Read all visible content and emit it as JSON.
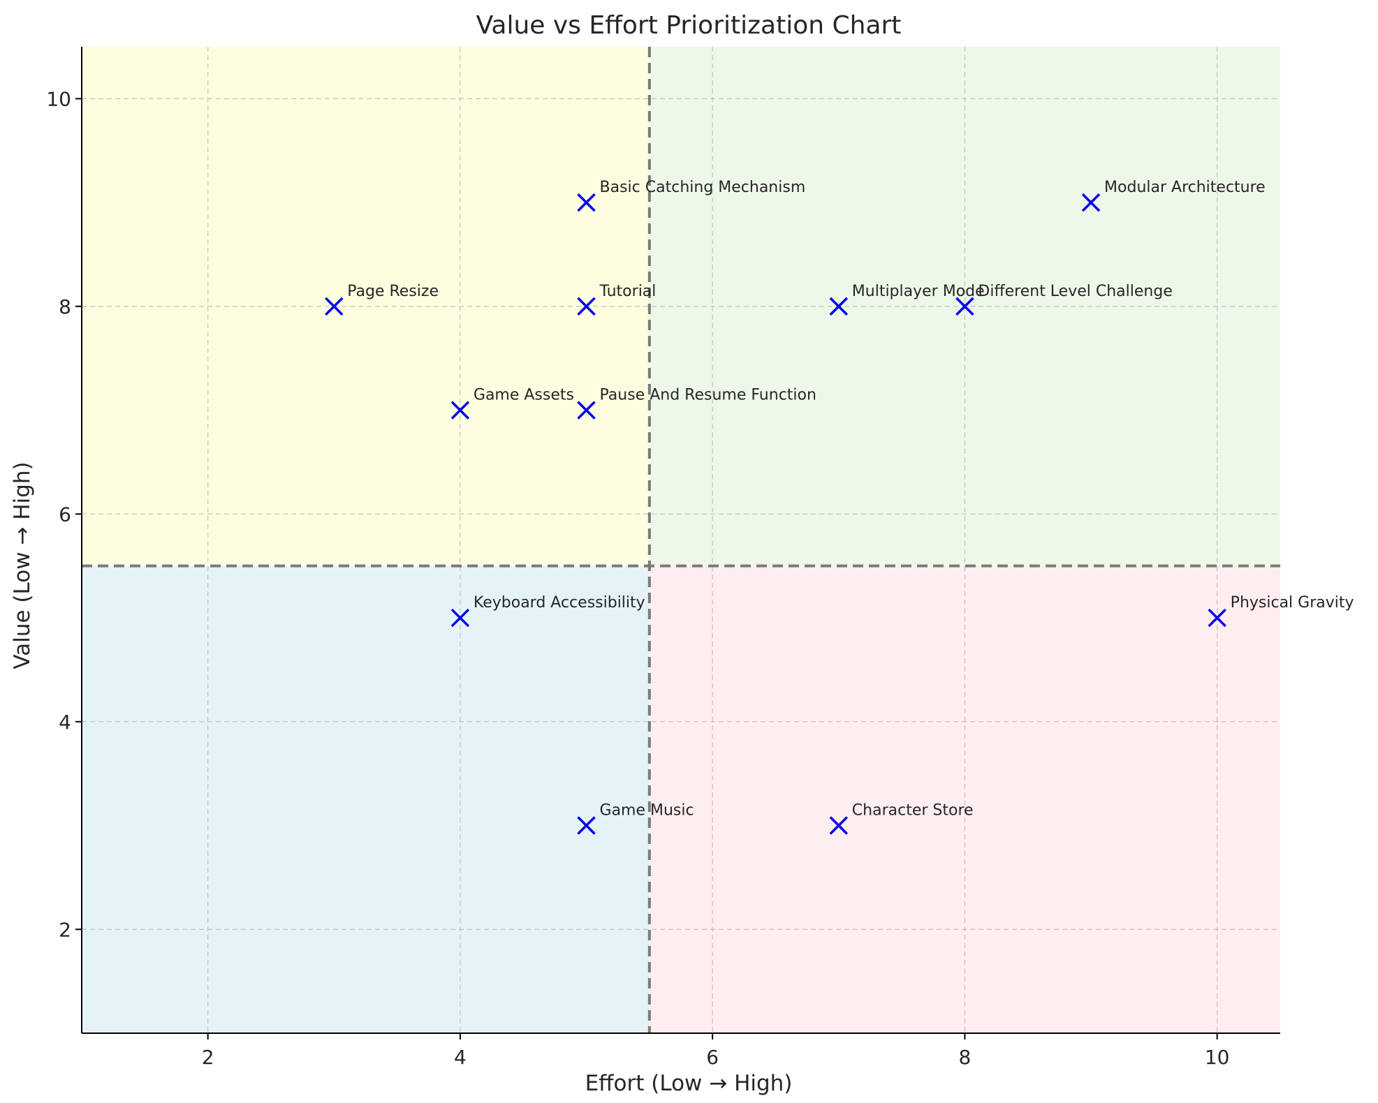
{
  "chart_data": {
    "type": "scatter",
    "title": "Value vs Effort Prioritization Chart",
    "xlabel": "Effort (Low → High)",
    "ylabel": "Value (Low → High)",
    "xlim": [
      1,
      10.5
    ],
    "ylim": [
      1,
      10.5
    ],
    "xticks": [
      2,
      4,
      6,
      8,
      10
    ],
    "yticks": [
      2,
      4,
      6,
      8,
      10
    ],
    "grid": true,
    "marker": "x",
    "marker_color": "#0000ee",
    "divider": {
      "x": 5.5,
      "y": 5.5,
      "color": "#7a7a7a"
    },
    "quadrants": [
      {
        "x": [
          1,
          5.5
        ],
        "y": [
          5.5,
          10.5
        ],
        "color": "#fdfde0"
      },
      {
        "x": [
          5.5,
          10.5
        ],
        "y": [
          5.5,
          10.5
        ],
        "color": "#eef8e9"
      },
      {
        "x": [
          1,
          5.5
        ],
        "y": [
          1,
          5.5
        ],
        "color": "#e5f3f7"
      },
      {
        "x": [
          5.5,
          10.5
        ],
        "y": [
          1,
          5.5
        ],
        "color": "#feeeef"
      }
    ],
    "points": [
      {
        "label": "Page Resize",
        "x": 3,
        "y": 8
      },
      {
        "label": "Game Assets",
        "x": 4,
        "y": 7
      },
      {
        "label": "Keyboard Accessibility",
        "x": 4,
        "y": 5
      },
      {
        "label": "Basic Catching Mechanism",
        "x": 5,
        "y": 9
      },
      {
        "label": "Tutorial",
        "x": 5,
        "y": 8
      },
      {
        "label": "Pause And Resume Function",
        "x": 5,
        "y": 7
      },
      {
        "label": "Game Music",
        "x": 5,
        "y": 3
      },
      {
        "label": "Multiplayer Mode",
        "x": 7,
        "y": 8
      },
      {
        "label": "Character Store",
        "x": 7,
        "y": 3
      },
      {
        "label": "Different Level Challenge",
        "x": 8,
        "y": 8
      },
      {
        "label": "Modular Architecture",
        "x": 9,
        "y": 9
      },
      {
        "label": "Physical Gravity",
        "x": 10,
        "y": 5
      }
    ]
  }
}
